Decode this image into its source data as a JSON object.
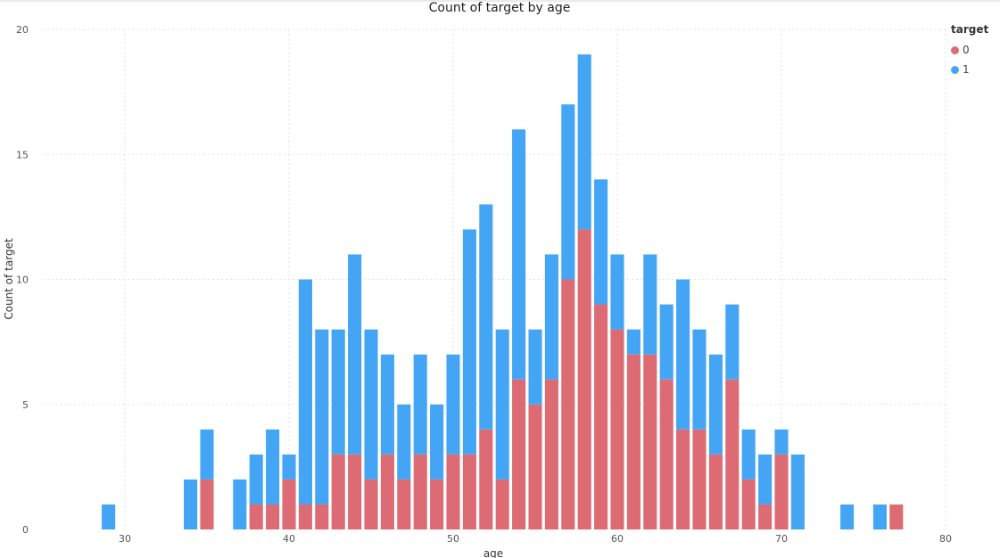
{
  "chart_data": {
    "type": "bar",
    "stacked": true,
    "title": "Count of target by age",
    "xlabel": "age",
    "ylabel": "Count of target",
    "xlim": [
      25,
      80
    ],
    "ylim": [
      0,
      20
    ],
    "x_ticks": [
      30,
      40,
      50,
      60,
      70,
      80
    ],
    "y_ticks": [
      0,
      5,
      10,
      15,
      20
    ],
    "grid": true,
    "legend": {
      "title": "target",
      "placement": "top-right"
    },
    "x": [
      29,
      34,
      35,
      37,
      38,
      39,
      40,
      41,
      42,
      43,
      44,
      45,
      46,
      47,
      48,
      49,
      50,
      51,
      52,
      53,
      54,
      55,
      56,
      57,
      58,
      59,
      60,
      61,
      62,
      63,
      64,
      65,
      66,
      67,
      68,
      69,
      70,
      71,
      74,
      76,
      77
    ],
    "series": [
      {
        "name": "0",
        "color": "#dd6b74",
        "values": [
          0,
          0,
          2,
          0,
          1,
          1,
          2,
          1,
          1,
          3,
          3,
          2,
          3,
          2,
          3,
          2,
          3,
          3,
          4,
          2,
          6,
          5,
          6,
          10,
          12,
          9,
          8,
          7,
          7,
          6,
          4,
          4,
          3,
          6,
          2,
          1,
          3,
          0,
          0,
          0,
          1
        ]
      },
      {
        "name": "1",
        "color": "#45a5f5",
        "values": [
          1,
          2,
          2,
          2,
          2,
          3,
          1,
          9,
          7,
          5,
          8,
          6,
          4,
          3,
          4,
          3,
          4,
          9,
          9,
          6,
          10,
          3,
          5,
          7,
          7,
          5,
          3,
          1,
          4,
          3,
          6,
          4,
          4,
          3,
          2,
          2,
          1,
          3,
          1,
          1,
          0
        ]
      }
    ]
  }
}
